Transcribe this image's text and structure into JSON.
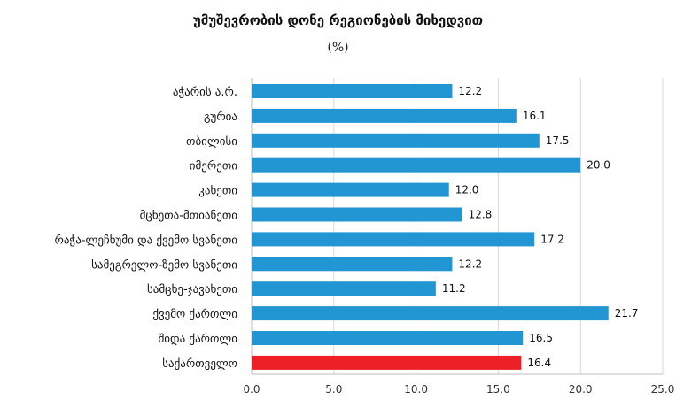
{
  "chart_data": {
    "type": "bar",
    "orientation": "horizontal",
    "title": "უმუშევრობის დონე რეგიონების მიხედვით",
    "subtitle": "(%)",
    "categories": [
      "აჭარის ა.რ.",
      "გურია",
      "თბილისი",
      "იმერეთი",
      "კახეთი",
      "მცხეთა-მთიანეთი",
      "რაჭა-ლეჩხუმი და ქვემო სვანეთი",
      "სამეგრელო-ზემო სვანეთი",
      "სამცხე-ჯავახეთი",
      "ქვემო ქართლი",
      "შიდა ქართლი",
      "საქართველო"
    ],
    "values": [
      12.2,
      16.1,
      17.5,
      20.0,
      12.0,
      12.8,
      17.2,
      12.2,
      11.2,
      21.7,
      16.5,
      16.4
    ],
    "value_labels": [
      "12.2",
      "16.1",
      "17.5",
      "20.0",
      "12.0",
      "12.8",
      "17.2",
      "12.2",
      "11.2",
      "21.7",
      "16.5",
      "16.4"
    ],
    "xlim": [
      0,
      25
    ],
    "xticks": [
      "0.0",
      "5.0",
      "10.0",
      "15.0",
      "20.0",
      "25.0"
    ],
    "grid": true,
    "legend": "none",
    "colors": {
      "bar": "#2196D3",
      "highlight": "#ED2027",
      "grid": "#D9D9D9"
    },
    "highlight_category": "საქართველო"
  }
}
